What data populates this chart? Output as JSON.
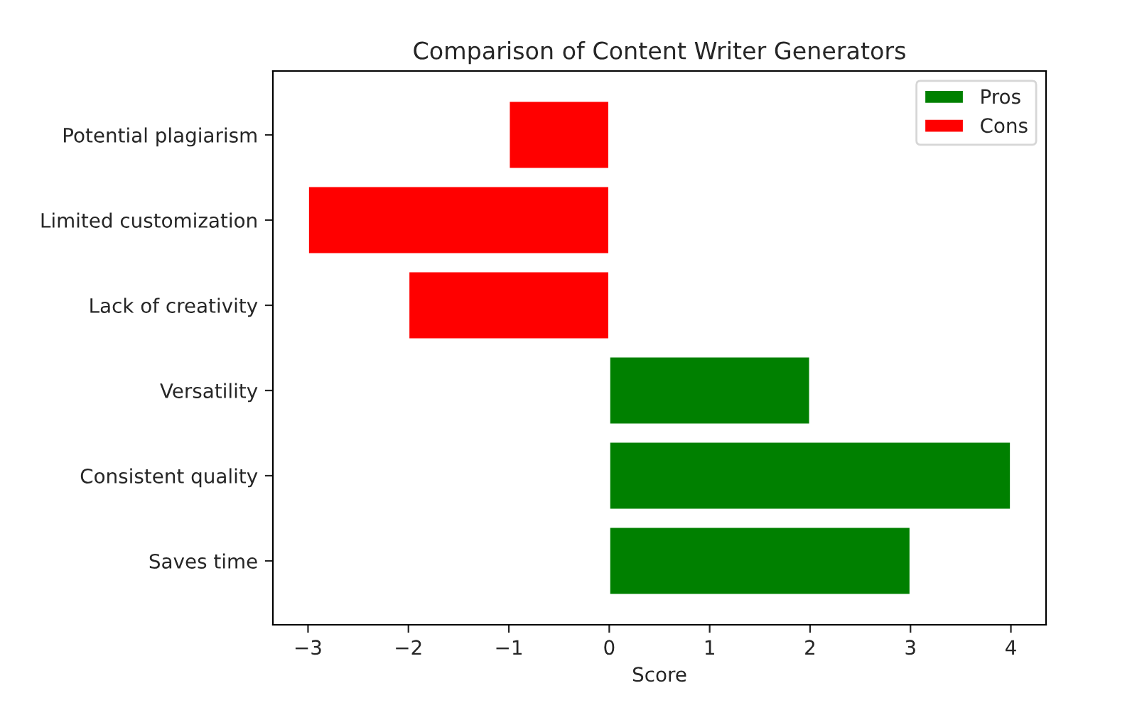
{
  "chart_data": {
    "type": "bar",
    "orientation": "horizontal",
    "title": "Comparison of Content Writer Generators",
    "xlabel": "Score",
    "categories": [
      "Potential plagiarism",
      "Limited customization",
      "Lack of creativity",
      "Versatility",
      "Consistent quality",
      "Saves time"
    ],
    "series": [
      {
        "name": "Pros",
        "color": "#008000",
        "values": [
          null,
          null,
          null,
          2,
          4,
          3
        ]
      },
      {
        "name": "Cons",
        "color": "#ff0000",
        "values": [
          -1,
          -3,
          -2,
          null,
          null,
          null
        ]
      }
    ],
    "xlim": [
      -3.35,
      4.35
    ],
    "xticks": [
      {
        "value": -3,
        "label": "−3"
      },
      {
        "value": -2,
        "label": "−2"
      },
      {
        "value": -1,
        "label": "−1"
      },
      0,
      1,
      2,
      3,
      4
    ],
    "legend": "top right",
    "grid": false
  }
}
